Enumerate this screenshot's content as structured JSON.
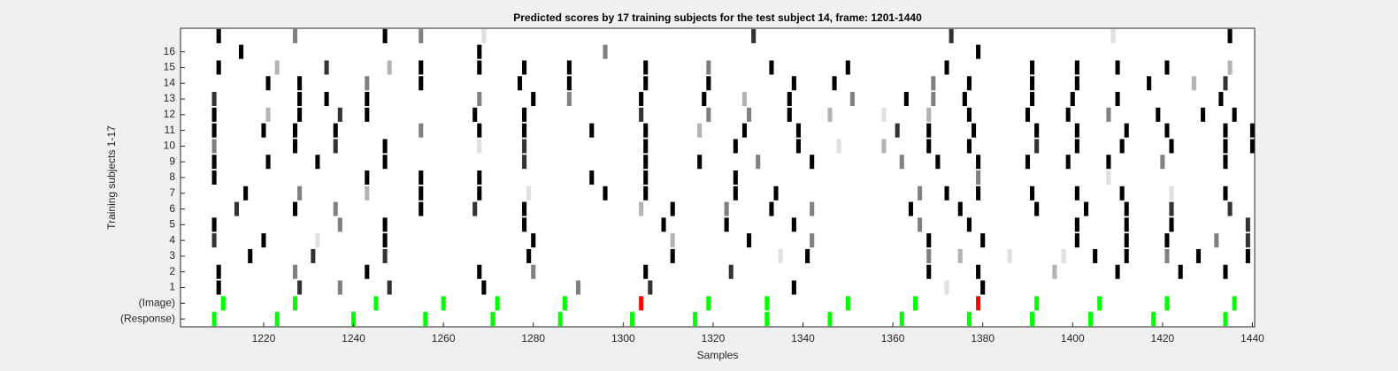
{
  "chart_data": {
    "type": "raster",
    "title": "Predicted scores by 17 training subjects for the test subject 14, frame: 1201-1440",
    "xlabel": "Samples",
    "ylabel": "Training subjects 1-17",
    "xlim": [
      1201.5,
      1440.5
    ],
    "xticks": [
      1220,
      1240,
      1260,
      1280,
      1300,
      1320,
      1340,
      1360,
      1380,
      1400,
      1420,
      1440
    ],
    "rows": [
      {
        "label": "(Response)",
        "x": [
          1209,
          1223,
          1240,
          1256,
          1271,
          1286,
          1302,
          1316,
          1332,
          1346,
          1362,
          1377,
          1391,
          1404,
          1418,
          1434
        ],
        "colors": [
          "#00ff00",
          "#00ff00",
          "#00ff00",
          "#00ff00",
          "#00ff00",
          "#00ff00",
          "#00ff00",
          "#00ff00",
          "#00ff00",
          "#00ff00",
          "#00ff00",
          "#00ff00",
          "#00ff00",
          "#00ff00",
          "#00ff00",
          "#00ff00"
        ]
      },
      {
        "label": "(Image)",
        "x": [
          1211,
          1227,
          1245,
          1260,
          1272,
          1287,
          1304,
          1319,
          1332,
          1350,
          1365,
          1379,
          1392,
          1406,
          1421,
          1436
        ],
        "colors": [
          "#00ff00",
          "#00ff00",
          "#00ff00",
          "#00ff00",
          "#00ff00",
          "#00ff00",
          "#ff0000",
          "#00ff00",
          "#00ff00",
          "#00ff00",
          "#00ff00",
          "#ff0000",
          "#00ff00",
          "#00ff00",
          "#00ff00",
          "#00ff00"
        ]
      },
      {
        "label": "1",
        "x": [
          1210,
          1228,
          1237,
          1248,
          1269,
          1290,
          1306,
          1338,
          1372,
          1380
        ],
        "values": [
          1,
          0.8,
          0.5,
          0.8,
          1,
          0.5,
          0.8,
          1,
          0.12,
          1
        ]
      },
      {
        "label": "2",
        "x": [
          1210,
          1227,
          1243,
          1268,
          1280,
          1305,
          1324,
          1368,
          1379,
          1396,
          1410,
          1424,
          1434
        ],
        "values": [
          1,
          0.5,
          1,
          1,
          0.5,
          1,
          0.8,
          1,
          1,
          0.3,
          1,
          1,
          1
        ]
      },
      {
        "label": "3",
        "x": [
          1217,
          1231,
          1247,
          1279,
          1311,
          1335,
          1341,
          1368,
          1375,
          1386,
          1398,
          1405,
          1412,
          1421,
          1428,
          1439
        ],
        "values": [
          1,
          0.8,
          0.8,
          1,
          1,
          0.12,
          1,
          0.5,
          0.3,
          0.12,
          0.12,
          1,
          1,
          0.5,
          1,
          1
        ]
      },
      {
        "label": "4",
        "x": [
          1209,
          1220,
          1232,
          1247,
          1280,
          1311,
          1328,
          1342,
          1368,
          1380,
          1401,
          1412,
          1421,
          1432,
          1439
        ],
        "values": [
          0.8,
          1,
          0.12,
          1,
          1,
          0.3,
          1,
          0.5,
          1,
          1,
          1,
          1,
          1,
          0.5,
          0.8
        ]
      },
      {
        "label": "5",
        "x": [
          1209,
          1237,
          1247,
          1278,
          1309,
          1323,
          1338,
          1366,
          1377,
          1401,
          1412,
          1422,
          1439
        ],
        "values": [
          1,
          0.5,
          1,
          1,
          1,
          1,
          1,
          0.5,
          1,
          1,
          1,
          1,
          0.8
        ]
      },
      {
        "label": "6",
        "x": [
          1214,
          1227,
          1236,
          1255,
          1267,
          1278,
          1304,
          1311,
          1323,
          1333,
          1342,
          1364,
          1375,
          1392,
          1403,
          1412,
          1422,
          1435
        ],
        "values": [
          0.8,
          1,
          0.5,
          1,
          0.8,
          1,
          0.3,
          1,
          0.5,
          1,
          0.5,
          1,
          1,
          1,
          1,
          1,
          0.8,
          0.8
        ]
      },
      {
        "label": "7",
        "x": [
          1216,
          1228,
          1243,
          1255,
          1268,
          1279,
          1296,
          1305,
          1325,
          1334,
          1366,
          1372,
          1379,
          1391,
          1401,
          1411,
          1422,
          1434
        ],
        "values": [
          1,
          0.5,
          0.3,
          1,
          1,
          0.12,
          1,
          1,
          1,
          1,
          0.5,
          1,
          1,
          1,
          1,
          1,
          0.12,
          1
        ]
      },
      {
        "label": "8",
        "x": [
          1209,
          1243,
          1255,
          1268,
          1293,
          1305,
          1325,
          1379,
          1408
        ],
        "values": [
          1,
          1,
          1,
          1,
          1,
          1,
          1,
          0.5,
          0.12
        ]
      },
      {
        "label": "9",
        "x": [
          1209,
          1221,
          1232,
          1247,
          1278,
          1305,
          1317,
          1330,
          1342,
          1362,
          1370,
          1379,
          1390,
          1399,
          1408,
          1420,
          1434
        ],
        "values": [
          1,
          1,
          1,
          1,
          0.8,
          1,
          1,
          0.5,
          1,
          0.5,
          1,
          1,
          1,
          1,
          1,
          0.5,
          1
        ]
      },
      {
        "label": "10",
        "x": [
          1209,
          1227,
          1236,
          1247,
          1268,
          1278,
          1305,
          1325,
          1339,
          1348,
          1358,
          1368,
          1377,
          1392,
          1401,
          1411,
          1422,
          1434,
          1440
        ],
        "values": [
          0.5,
          1,
          0.8,
          1,
          0.12,
          0.8,
          1,
          1,
          1,
          0.12,
          0.3,
          1,
          1,
          0.8,
          1,
          1,
          1,
          1,
          1
        ]
      },
      {
        "label": "11",
        "x": [
          1209,
          1220,
          1227,
          1236,
          1255,
          1268,
          1278,
          1293,
          1305,
          1317,
          1327,
          1339,
          1361,
          1368,
          1378,
          1392,
          1401,
          1412,
          1421,
          1434,
          1440
        ],
        "values": [
          1,
          1,
          1,
          1,
          0.5,
          1,
          1,
          1,
          1,
          0.3,
          1,
          1,
          0.8,
          1,
          1,
          1,
          1,
          1,
          1,
          1,
          1
        ]
      },
      {
        "label": "12",
        "x": [
          1209,
          1221,
          1228,
          1237,
          1243,
          1267,
          1278,
          1304,
          1319,
          1328,
          1337,
          1346,
          1358,
          1368,
          1377,
          1390,
          1399,
          1408,
          1419,
          1429,
          1436
        ],
        "values": [
          1,
          0.3,
          1,
          0.8,
          1,
          1,
          1,
          0.8,
          0.5,
          0.5,
          1,
          0.3,
          0.12,
          0.3,
          1,
          1,
          1,
          0.5,
          1,
          1,
          1
        ]
      },
      {
        "label": "13",
        "x": [
          1209,
          1228,
          1234,
          1243,
          1268,
          1280,
          1288,
          1304,
          1318,
          1327,
          1337,
          1351,
          1363,
          1369,
          1376,
          1391,
          1400,
          1410,
          1433
        ],
        "values": [
          0.8,
          1,
          1,
          1,
          0.5,
          1,
          0.5,
          1,
          1,
          0.3,
          1,
          0.5,
          1,
          0.5,
          1,
          1,
          1,
          1,
          1
        ]
      },
      {
        "label": "14",
        "x": [
          1221,
          1228,
          1243,
          1255,
          1277,
          1288,
          1305,
          1319,
          1338,
          1347,
          1369,
          1377,
          1391,
          1401,
          1417,
          1427,
          1434
        ],
        "values": [
          1,
          1,
          0.5,
          1,
          1,
          1,
          1,
          1,
          1,
          1,
          0.5,
          1,
          1,
          1,
          1,
          0.3,
          0.8
        ]
      },
      {
        "label": "15",
        "x": [
          1210,
          1223,
          1234,
          1248,
          1255,
          1268,
          1278,
          1288,
          1305,
          1319,
          1333,
          1350,
          1372,
          1391,
          1401,
          1410,
          1421,
          1435
        ],
        "values": [
          1,
          0.3,
          0.8,
          0.3,
          1,
          1,
          1,
          1,
          1,
          0.5,
          1,
          1,
          1,
          1,
          1,
          1,
          1,
          0.3
        ]
      },
      {
        "label": "16",
        "x": [
          1215,
          1268,
          1296,
          1379
        ],
        "values": [
          1,
          1,
          0.5,
          1
        ]
      },
      {
        "label": null,
        "x": [
          1210,
          1227,
          1247,
          1255,
          1269,
          1329,
          1373,
          1409,
          1435
        ],
        "values": [
          1,
          0.5,
          1,
          0.5,
          0.12,
          0.8,
          0.8,
          0.12,
          1
        ]
      }
    ]
  }
}
